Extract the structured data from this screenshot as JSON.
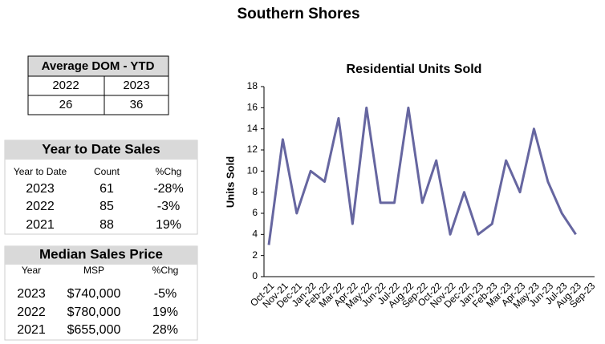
{
  "title": "Southern Shores",
  "dom_table": {
    "title": "Average DOM - YTD",
    "headers": [
      "2022",
      "2023"
    ],
    "values": [
      "26",
      "36"
    ]
  },
  "ytd_sales": {
    "title": "Year to Date Sales",
    "headers": [
      "Year to Date",
      "Count",
      "%Chg"
    ],
    "rows": [
      [
        "2023",
        "61",
        "-28%"
      ],
      [
        "2022",
        "85",
        "-3%"
      ],
      [
        "2021",
        "88",
        "19%"
      ]
    ]
  },
  "median_price": {
    "title": "Median Sales Price",
    "headers": [
      "Year",
      "MSP",
      "%Chg"
    ],
    "rows": [
      [
        "2023",
        "$740,000",
        "-5%"
      ],
      [
        "2022",
        "$780,000",
        "19%"
      ],
      [
        "2021",
        "$655,000",
        "28%"
      ]
    ]
  },
  "chart_data": {
    "type": "line",
    "title": "Residential Units Sold",
    "y_label": "Units Sold",
    "categories": [
      "Oct-21",
      "Nov-21",
      "Dec-21",
      "Jan-22",
      "Feb-22",
      "Mar-22",
      "Apr-22",
      "May-22",
      "Jun-22",
      "Jul-22",
      "Aug-22",
      "Sep-22",
      "Oct-22",
      "Nov-22",
      "Dec-22",
      "Jan-23",
      "Feb-23",
      "Mar-23",
      "Apr-23",
      "May-23",
      "Jun-23",
      "Jul-23",
      "Aug-23",
      "Sep-23"
    ],
    "values": [
      3,
      13,
      6,
      10,
      9,
      15,
      5,
      16,
      7,
      7,
      16,
      7,
      11,
      4,
      8,
      4,
      5,
      11,
      8,
      14,
      9,
      6,
      4,
      null
    ],
    "color": "#6666a0",
    "ylim": [
      0,
      18
    ],
    "yticks": [
      0,
      2,
      4,
      6,
      8,
      10,
      12,
      14,
      16,
      18
    ]
  }
}
